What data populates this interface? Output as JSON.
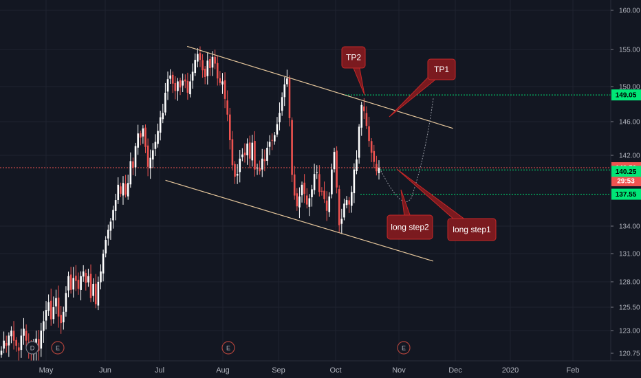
{
  "chart_data": {
    "type": "candlestick",
    "price_axis": {
      "ticks": [
        "160.00",
        "155.00",
        "150.00",
        "146.00",
        "142.00",
        "140.50",
        "140.25",
        "137.55",
        "134.00",
        "131.00",
        "128.00",
        "125.50",
        "123.00",
        "120.75"
      ],
      "grid": true
    },
    "time_axis": {
      "labels": [
        "May",
        "Jun",
        "Jul",
        "Aug",
        "Sep",
        "Oct",
        "Nov",
        "Dec",
        "2020",
        "Feb"
      ]
    },
    "price_tags": [
      {
        "value": "149.05",
        "color": "#00e676",
        "text_color": "#000000"
      },
      {
        "value": "140.50",
        "color": "#ef5350",
        "text_color": "#ffffff"
      },
      {
        "value": "29:53",
        "color": "#ef5350",
        "text_color": "#ffffff"
      },
      {
        "value": "140.25",
        "color": "#00e676",
        "text_color": "#000000"
      },
      {
        "value": "137.55",
        "color": "#00e676",
        "text_color": "#000000"
      }
    ],
    "horizontal_lines": [
      {
        "price": 149.05,
        "color": "#00e676",
        "style": "dotted"
      },
      {
        "price": 140.5,
        "color": "#ef5350",
        "style": "dotted"
      },
      {
        "price": 140.25,
        "color": "#00e676",
        "style": "dotted"
      },
      {
        "price": 137.55,
        "color": "#00e676",
        "style": "dotted"
      }
    ],
    "channel": {
      "upper": {
        "start": [
          "Jul 18",
          155.4
        ],
        "end": [
          "Dec 12",
          145.2
        ]
      },
      "lower": {
        "start": [
          "Jul 6",
          139.1
        ],
        "end": [
          "Dec 1",
          130.2
        ]
      }
    },
    "callouts": [
      {
        "label": "TP2"
      },
      {
        "label": "TP1"
      },
      {
        "label": "long step2"
      },
      {
        "label": "long step1"
      }
    ],
    "events": [
      "D",
      "E",
      "E",
      "E"
    ],
    "series": [
      {
        "values": [
          121.0,
          122.0,
          121.5,
          122.5,
          123.0,
          122.0,
          121.5,
          121.0,
          122.5,
          123.2,
          122.0,
          121.3,
          120.9,
          121.2,
          122.2,
          121.0,
          123.0,
          124.0,
          125.2,
          126.0,
          124.2,
          125.5,
          126.4,
          124.5,
          123.8,
          125.0,
          126.9,
          128.6,
          127.2,
          128.4,
          128.1,
          127.3,
          128.6,
          129.1,
          127.9,
          128.6,
          126.4,
          127.8,
          125.8,
          128.0,
          129.1,
          131.0,
          132.5,
          133.6,
          134.5,
          135.8,
          136.9,
          138.6,
          137.6,
          138.8,
          137.5,
          138.8,
          141.3,
          140.5,
          143.1,
          144.6,
          144.1,
          145.2,
          143.0,
          140.6,
          141.7,
          142.6,
          143.6,
          144.9,
          146.5,
          147.0,
          149.3,
          151.0,
          151.5,
          150.4,
          149.5,
          150.7,
          149.9,
          150.8,
          150.7,
          149.3,
          150.7,
          152.0,
          153.6,
          154.4,
          153.6,
          152.2,
          151.3,
          153.5,
          152.5,
          154.0,
          153.1,
          151.1,
          150.5,
          150.7,
          148.6,
          146.8,
          143.8,
          140.8,
          139.5,
          139.8,
          141.6,
          142.1,
          142.0,
          143.4,
          141.6,
          143.5,
          140.3,
          140.5,
          140.1,
          141.6,
          141.3,
          142.9,
          143.6,
          143.8,
          144.4,
          145.7,
          147.0,
          148.8,
          150.3,
          151.1,
          146.4,
          139.7,
          137.4,
          136.2,
          137.3,
          138.6,
          137.6,
          136.4,
          137.1,
          138.1,
          139.8,
          140.0,
          137.8,
          137.9,
          137.0,
          135.7,
          137.3,
          140.3,
          142.4,
          138.3,
          134.1,
          134.8,
          136.5,
          136.9,
          136.4,
          137.8,
          140.3,
          141.5,
          145.4,
          147.9,
          147.2,
          145.5,
          143.7,
          142.3,
          141.2,
          140.1,
          140.5
        ]
      }
    ]
  }
}
